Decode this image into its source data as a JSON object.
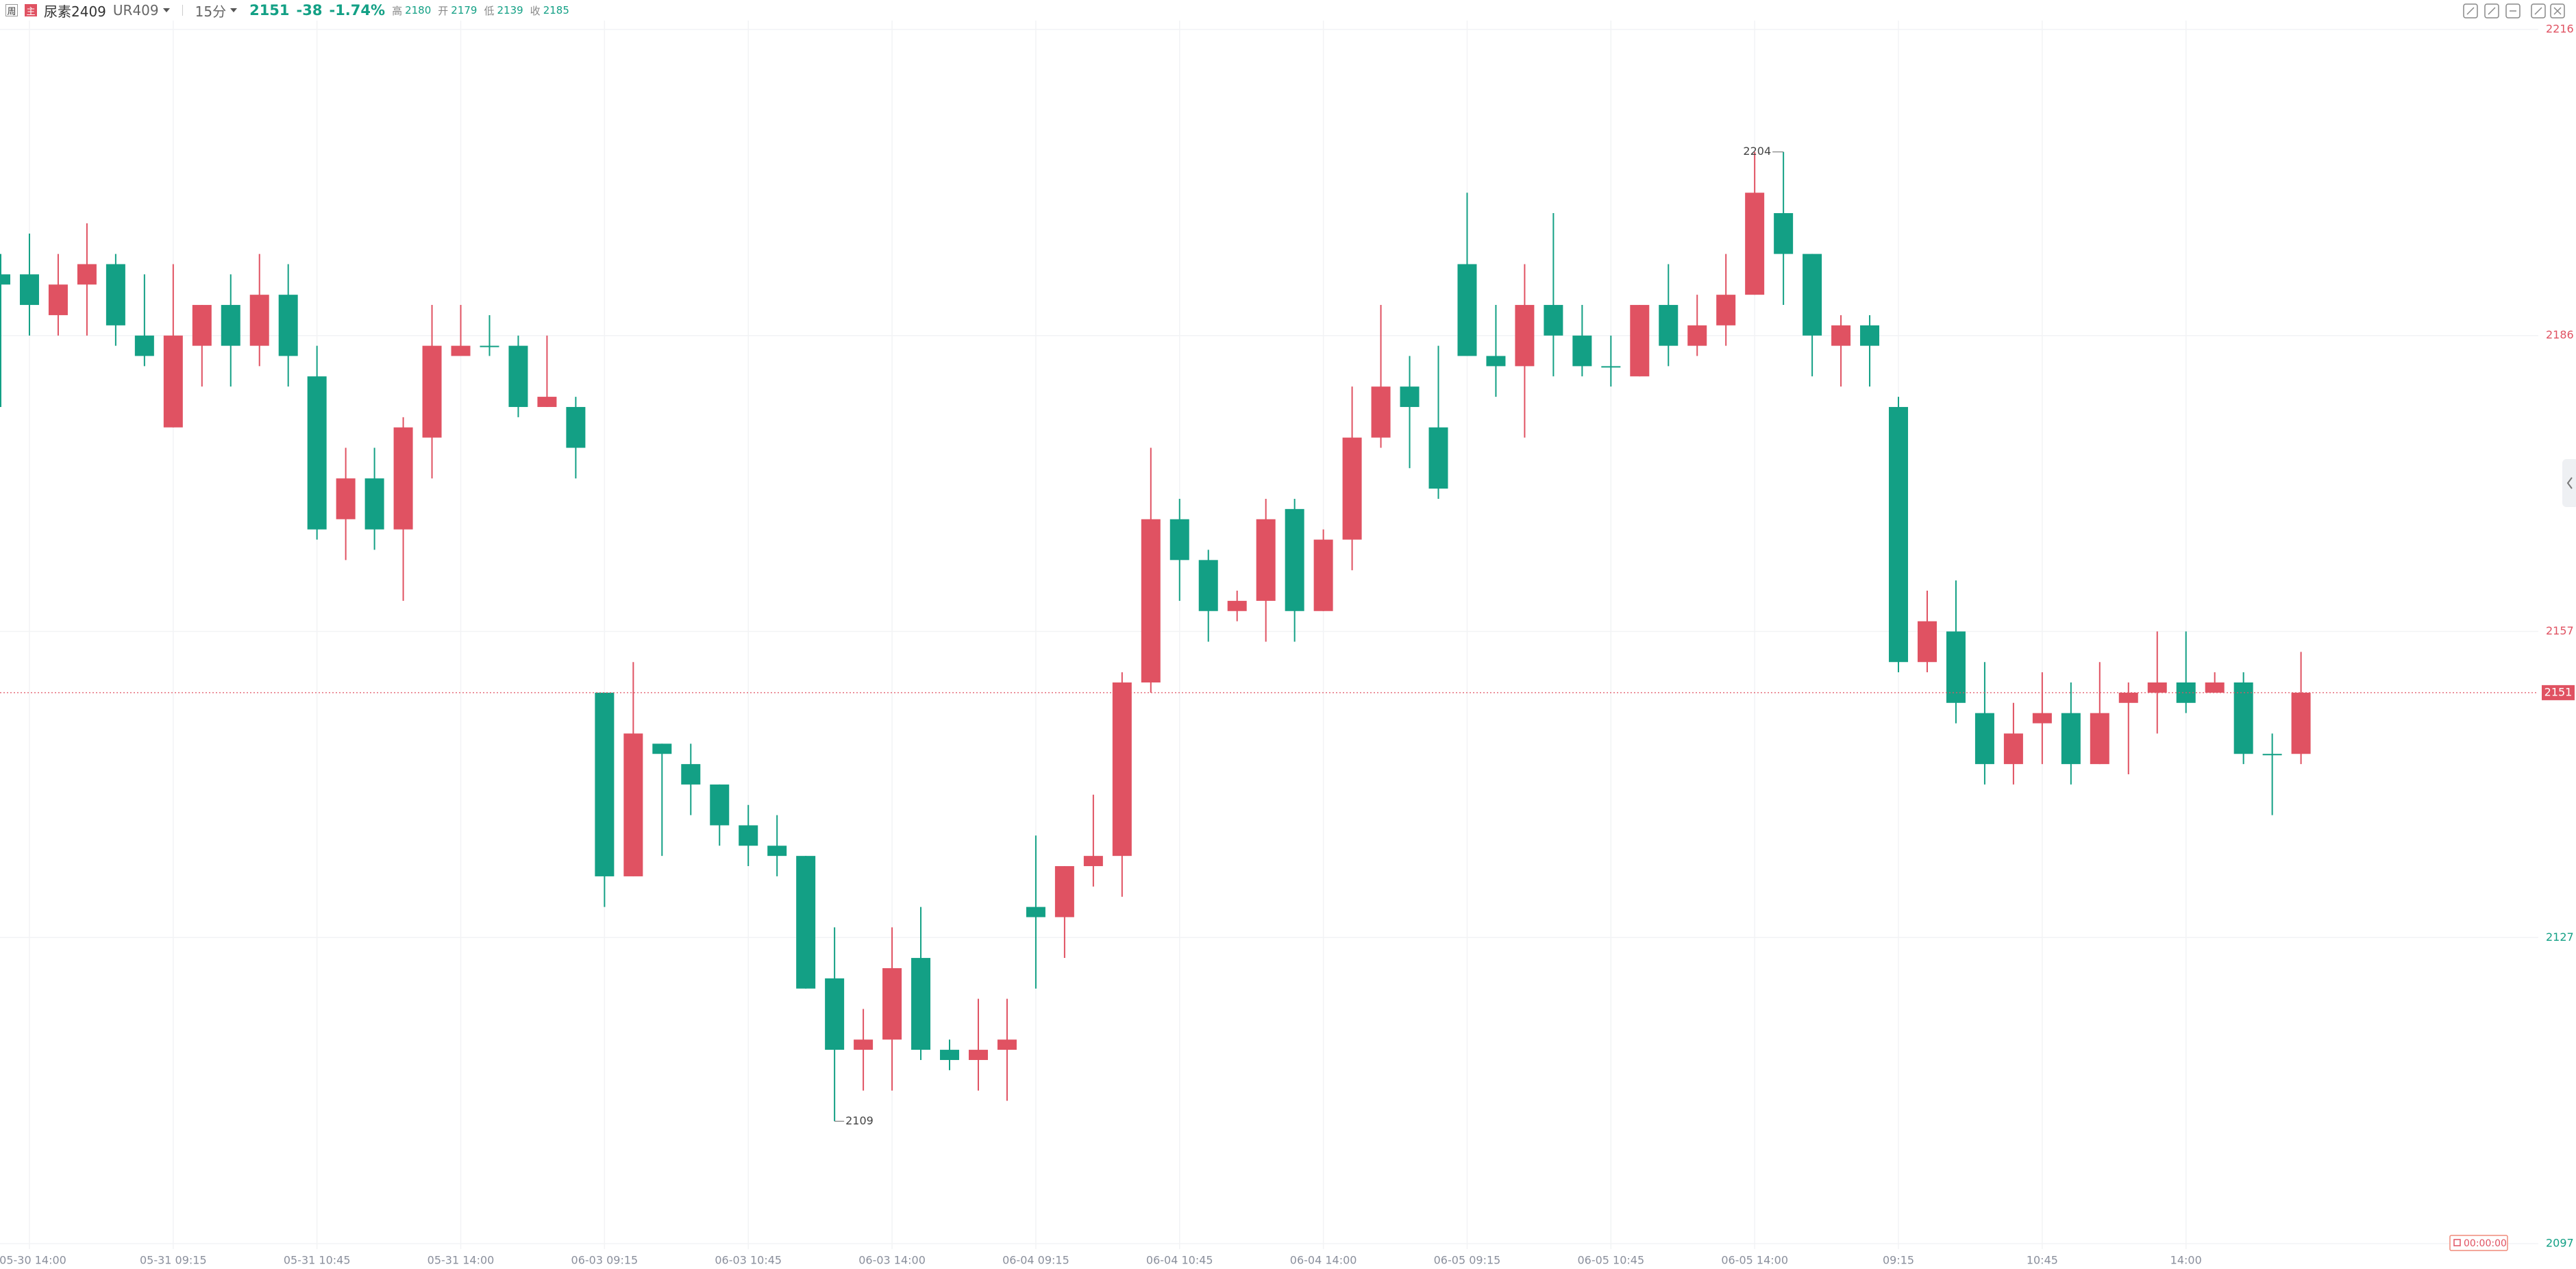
{
  "header": {
    "badges": [
      "周",
      "主"
    ],
    "symbol": "尿素2409",
    "code": "UR409",
    "period": "15分",
    "last": "2151",
    "change": "-38",
    "change_pct": "-1.74%",
    "stats": [
      {
        "label": "高",
        "value": "2180"
      },
      {
        "label": "开",
        "value": "2179"
      },
      {
        "label": "低",
        "value": "2139"
      },
      {
        "label": "收",
        "value": "2185"
      }
    ],
    "timer": "00:00:00"
  },
  "chart_data": {
    "type": "candlestick",
    "up_color": "#e05262",
    "down_color": "#13a085",
    "grid": true,
    "ylim": [
      2097,
      2216
    ],
    "yticks": [
      2097,
      2127,
      2157,
      2186,
      2216
    ],
    "categories": [
      null,
      "05-30 14:00",
      null,
      null,
      null,
      null,
      "05-31 09:15",
      null,
      null,
      null,
      null,
      "05-31 10:45",
      null,
      null,
      null,
      null,
      "05-31 14:00",
      null,
      null,
      null,
      null,
      "06-03 09:15",
      null,
      null,
      null,
      null,
      "06-03 10:45",
      null,
      null,
      null,
      null,
      "06-03 14:00",
      null,
      null,
      null,
      null,
      "06-04 09:15",
      null,
      null,
      null,
      null,
      "06-04 10:45",
      null,
      null,
      null,
      null,
      "06-04 14:00",
      null,
      null,
      null,
      null,
      "06-05 09:15",
      null,
      null,
      null,
      null,
      "06-05 10:45",
      null,
      null,
      null,
      null,
      "06-05 14:00",
      null,
      null,
      null,
      null,
      "09:15",
      null,
      null,
      null,
      null,
      "10:45",
      null,
      null,
      null,
      null,
      "14:00",
      null,
      null,
      null,
      null
    ],
    "open": [
      2192,
      2192,
      2188,
      2191,
      2193,
      2186,
      2177,
      2185,
      2189,
      2185,
      2190,
      2182,
      2168,
      2172,
      2167,
      2176,
      2184,
      2185,
      2185,
      2179,
      2179,
      2151,
      2133,
      2146,
      2144,
      2142,
      2138,
      2136,
      2135,
      2123,
      2116,
      2117,
      2125,
      2116,
      2115,
      2116,
      2130,
      2129,
      2134,
      2135,
      2152,
      2168,
      2164,
      2159,
      2160,
      2169,
      2159,
      2166,
      2176,
      2181,
      2177,
      2193,
      2184,
      2183,
      2189,
      2186,
      2183,
      2182,
      2189,
      2185,
      2187,
      2190,
      2198,
      2194,
      2185,
      2187,
      2179,
      2154,
      2157,
      2149,
      2144,
      2148,
      2149,
      2144,
      2150,
      2151,
      2152,
      2151,
      2152,
      2145,
      2145
    ],
    "high": [
      2194,
      2196,
      2194,
      2197,
      2194,
      2192,
      2193,
      2189,
      2192,
      2194,
      2193,
      2185,
      2175,
      2175,
      2178,
      2189,
      2189,
      2188,
      2186,
      2186,
      2180,
      2151,
      2154,
      2146,
      2146,
      2142,
      2140,
      2139,
      2135,
      2128,
      2120,
      2128,
      2130,
      2117,
      2121,
      2121,
      2137,
      2134,
      2141,
      2153,
      2175,
      2170,
      2165,
      2161,
      2170,
      2170,
      2167,
      2181,
      2189,
      2184,
      2185,
      2200,
      2189,
      2193,
      2198,
      2189,
      2186,
      2189,
      2193,
      2190,
      2194,
      2204,
      2204,
      2194,
      2188,
      2188,
      2180,
      2161,
      2162,
      2154,
      2150,
      2153,
      2152,
      2154,
      2152,
      2157,
      2157,
      2153,
      2153,
      2147,
      2155
    ],
    "low": [
      2179,
      2186,
      2186,
      2186,
      2185,
      2183,
      2177,
      2181,
      2181,
      2183,
      2181,
      2166,
      2164,
      2165,
      2160,
      2172,
      2184,
      2184,
      2178,
      2179,
      2172,
      2130,
      2133,
      2135,
      2139,
      2136,
      2134,
      2133,
      2122,
      2109,
      2112,
      2112,
      2115,
      2114,
      2112,
      2111,
      2122,
      2125,
      2132,
      2131,
      2151,
      2160,
      2156,
      2158,
      2156,
      2156,
      2159,
      2163,
      2175,
      2173,
      2170,
      2184,
      2180,
      2176,
      2182,
      2182,
      2181,
      2182,
      2183,
      2184,
      2185,
      2190,
      2189,
      2182,
      2181,
      2181,
      2153,
      2153,
      2148,
      2142,
      2142,
      2144,
      2142,
      2144,
      2143,
      2147,
      2149,
      2151,
      2144,
      2139,
      2144
    ],
    "close": [
      2191,
      2189,
      2191,
      2193,
      2187,
      2184,
      2186,
      2189,
      2185,
      2190,
      2184,
      2167,
      2172,
      2167,
      2177,
      2185,
      2185,
      2185,
      2179,
      2180,
      2175,
      2133,
      2147,
      2145,
      2142,
      2138,
      2136,
      2135,
      2122,
      2116,
      2117,
      2124,
      2116,
      2115,
      2116,
      2117,
      2129,
      2134,
      2135,
      2152,
      2168,
      2164,
      2159,
      2160,
      2168,
      2159,
      2166,
      2176,
      2181,
      2179,
      2171,
      2184,
      2183,
      2189,
      2186,
      2183,
      2183,
      2189,
      2185,
      2187,
      2190,
      2200,
      2194,
      2186,
      2187,
      2185,
      2154,
      2158,
      2150,
      2144,
      2147,
      2149,
      2144,
      2149,
      2151,
      2152,
      2150,
      2152,
      2145,
      2145,
      2151
    ]
  }
}
